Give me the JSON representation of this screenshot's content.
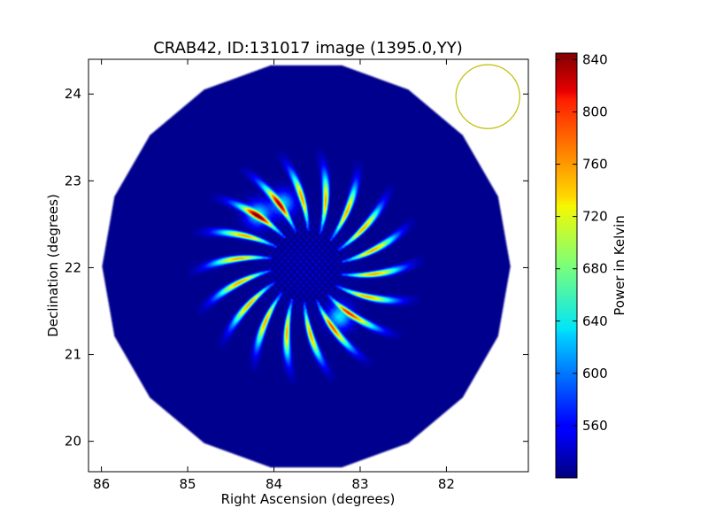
{
  "chart_data": {
    "type": "heatmap",
    "title": "CRAB42, ID:131017 image (1395.0,YY)",
    "xlabel": "Right Ascension (degrees)",
    "ylabel": "Declination (degrees)",
    "xlim": [
      86.15,
      81.05
    ],
    "ylim": [
      19.65,
      24.4
    ],
    "x_ticks": [
      86,
      85,
      84,
      83,
      82
    ],
    "y_ticks": [
      20,
      21,
      22,
      23,
      24
    ],
    "x_tick_labels": [
      "86",
      "85",
      "84",
      "83",
      "82"
    ],
    "y_tick_labels": [
      "20",
      "21",
      "22",
      "23",
      "24"
    ],
    "grid": false,
    "colormap": "jet",
    "field_of_view": {
      "center_ra": 83.63,
      "center_dec": 22.02,
      "radius_deg": 2.38,
      "sides": 18
    },
    "background_level": 525,
    "pattern": {
      "center_ra": 83.63,
      "center_dec": 22.02,
      "petals": 18,
      "inner_radius_deg": 0.55,
      "outer_radius_deg": 1.25,
      "peak_level": 805,
      "hot_spots": [
        {
          "ra": 84.19,
          "dec": 22.62,
          "level": 840
        },
        {
          "ra": 83.24,
          "dec": 21.44,
          "level": 830
        },
        {
          "ra": 83.9,
          "dec": 22.75,
          "level": 800
        }
      ]
    },
    "beam": {
      "ra": 81.52,
      "dec": 23.97,
      "radius_deg": 0.37,
      "color": "#bfbf00"
    },
    "colorbar": {
      "label": "Power in Kelvin",
      "vmin": 520,
      "vmax": 845,
      "ticks": [
        560,
        600,
        640,
        680,
        720,
        760,
        800,
        840
      ],
      "tick_labels": [
        "560",
        "600",
        "640",
        "680",
        "720",
        "760",
        "800",
        "840"
      ]
    }
  }
}
